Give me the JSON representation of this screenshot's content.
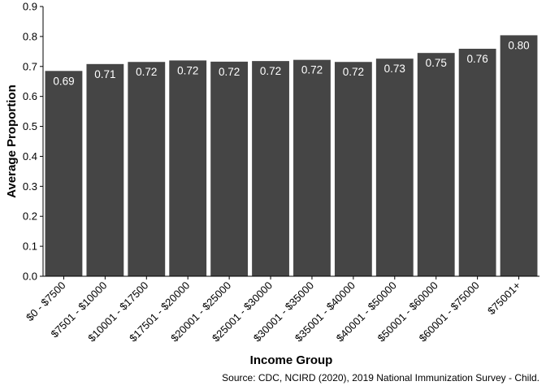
{
  "chart_data": {
    "type": "bar",
    "title": "",
    "xlabel": "Income Group",
    "ylabel": "Average Proportion",
    "caption": "Source: CDC, NCIRD (2020), 2019 National Immunization Survey - Child.",
    "categories": [
      "$0 - $7500",
      "$7501 - $10000",
      "$10001 - $17500",
      "$17501 - $20000",
      "$20001 - $25000",
      "$25001 - $30000",
      "$30001 - $35000",
      "$35001 - $40000",
      "$40001 - $50000",
      "$50001 - $60000",
      "$60001 - $75000",
      "$75001+"
    ],
    "values": [
      0.685,
      0.708,
      0.715,
      0.72,
      0.716,
      0.718,
      0.722,
      0.715,
      0.726,
      0.745,
      0.759,
      0.804
    ],
    "value_labels": [
      "0.69",
      "0.71",
      "0.72",
      "0.72",
      "0.72",
      "0.72",
      "0.72",
      "0.72",
      "0.73",
      "0.75",
      "0.76",
      "0.80"
    ],
    "ylim": [
      0,
      0.9
    ],
    "yticks": [
      "0.0",
      "0.1",
      "0.2",
      "0.3",
      "0.4",
      "0.5",
      "0.6",
      "0.7",
      "0.8",
      "0.9"
    ],
    "bar_color": "#454545",
    "label_color": "#ffffff",
    "grid": false,
    "legend": "none"
  }
}
